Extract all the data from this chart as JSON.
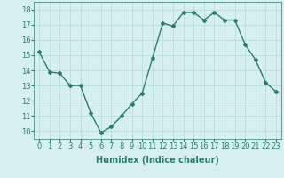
{
  "x": [
    0,
    1,
    2,
    3,
    4,
    5,
    6,
    7,
    8,
    9,
    10,
    11,
    12,
    13,
    14,
    15,
    16,
    17,
    18,
    19,
    20,
    21,
    22,
    23
  ],
  "y": [
    15.2,
    13.9,
    13.8,
    13.0,
    13.0,
    11.2,
    9.9,
    10.3,
    11.0,
    11.8,
    12.5,
    14.8,
    17.1,
    16.9,
    17.8,
    17.8,
    17.3,
    17.8,
    17.3,
    17.3,
    15.7,
    14.7,
    13.2,
    12.6
  ],
  "line_color": "#2d7b6f",
  "marker": "D",
  "marker_size": 2,
  "bg_color": "#d6f0f0",
  "grid_color": "#b0d8d8",
  "xlabel": "Humidex (Indice chaleur)",
  "ylim": [
    9.5,
    18.5
  ],
  "xlim": [
    -0.5,
    23.5
  ],
  "yticks": [
    10,
    11,
    12,
    13,
    14,
    15,
    16,
    17,
    18
  ],
  "xticks": [
    0,
    1,
    2,
    3,
    4,
    5,
    6,
    7,
    8,
    9,
    10,
    11,
    12,
    13,
    14,
    15,
    16,
    17,
    18,
    19,
    20,
    21,
    22,
    23
  ],
  "xlabel_fontsize": 7,
  "tick_fontsize": 6,
  "linewidth": 1.0
}
